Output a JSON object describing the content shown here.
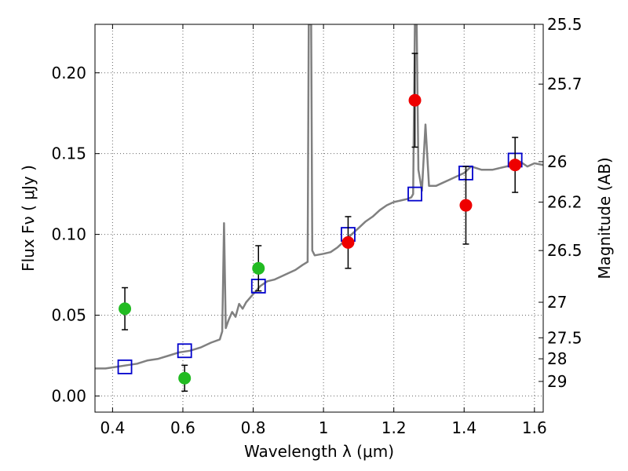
{
  "chart_data": {
    "type": "scatter",
    "xlabel": "Wavelength  λ (μm)",
    "ylabel": "Flux  Fν  ( μJy )",
    "y2label": "Magnitude (AB)",
    "xlim": [
      0.35,
      1.625
    ],
    "ylim": [
      -0.01,
      0.23
    ],
    "grid": true,
    "xticks": [
      0.4,
      0.6,
      0.8,
      1.0,
      1.2,
      1.4,
      1.6
    ],
    "xtick_labels": [
      "0.4",
      "0.6",
      "0.8",
      "1",
      "1.2",
      "1.4",
      "1.6"
    ],
    "yticks": [
      0.0,
      0.05,
      0.1,
      0.15,
      0.2
    ],
    "ytick_labels": [
      "0.00",
      "0.05",
      "0.10",
      "0.15",
      "0.20"
    ],
    "y2ticks": [
      {
        "label": "25.5",
        "flux": 0.23
      },
      {
        "label": "25.7",
        "flux": 0.193
      },
      {
        "label": "26",
        "flux": 0.145
      },
      {
        "label": "26.2",
        "flux": 0.12
      },
      {
        "label": "26.5",
        "flux": 0.09
      },
      {
        "label": "27",
        "flux": 0.058
      },
      {
        "label": "27.5",
        "flux": 0.036
      },
      {
        "label": "28",
        "flux": 0.023
      },
      {
        "label": "29",
        "flux": 0.009
      }
    ],
    "series": [
      {
        "kind": "line",
        "color": "#808080",
        "points": [
          [
            0.35,
            0.017
          ],
          [
            0.38,
            0.017
          ],
          [
            0.41,
            0.018
          ],
          [
            0.44,
            0.019
          ],
          [
            0.47,
            0.02
          ],
          [
            0.5,
            0.022
          ],
          [
            0.53,
            0.023
          ],
          [
            0.56,
            0.025
          ],
          [
            0.59,
            0.027
          ],
          [
            0.62,
            0.028
          ],
          [
            0.65,
            0.03
          ],
          [
            0.68,
            0.033
          ],
          [
            0.705,
            0.035
          ],
          [
            0.712,
            0.04
          ],
          [
            0.717,
            0.107
          ],
          [
            0.722,
            0.042
          ],
          [
            0.73,
            0.047
          ],
          [
            0.74,
            0.052
          ],
          [
            0.75,
            0.049
          ],
          [
            0.76,
            0.057
          ],
          [
            0.77,
            0.054
          ],
          [
            0.78,
            0.058
          ],
          [
            0.8,
            0.063
          ],
          [
            0.82,
            0.068
          ],
          [
            0.84,
            0.071
          ],
          [
            0.86,
            0.072
          ],
          [
            0.88,
            0.074
          ],
          [
            0.9,
            0.076
          ],
          [
            0.92,
            0.078
          ],
          [
            0.94,
            0.081
          ],
          [
            0.955,
            0.083
          ],
          [
            0.958,
            0.23
          ],
          [
            0.965,
            0.23
          ],
          [
            0.968,
            0.09
          ],
          [
            0.975,
            0.087
          ],
          [
            1.0,
            0.088
          ],
          [
            1.02,
            0.089
          ],
          [
            1.04,
            0.092
          ],
          [
            1.06,
            0.096
          ],
          [
            1.08,
            0.1
          ],
          [
            1.1,
            0.104
          ],
          [
            1.12,
            0.108
          ],
          [
            1.14,
            0.111
          ],
          [
            1.16,
            0.115
          ],
          [
            1.18,
            0.118
          ],
          [
            1.2,
            0.12
          ],
          [
            1.22,
            0.121
          ],
          [
            1.24,
            0.122
          ],
          [
            1.25,
            0.123
          ],
          [
            1.255,
            0.125
          ],
          [
            1.26,
            0.23
          ],
          [
            1.265,
            0.23
          ],
          [
            1.27,
            0.14
          ],
          [
            1.28,
            0.127
          ],
          [
            1.29,
            0.168
          ],
          [
            1.3,
            0.13
          ],
          [
            1.32,
            0.13
          ],
          [
            1.34,
            0.132
          ],
          [
            1.36,
            0.134
          ],
          [
            1.38,
            0.136
          ],
          [
            1.4,
            0.138
          ],
          [
            1.42,
            0.142
          ],
          [
            1.45,
            0.14
          ],
          [
            1.48,
            0.14
          ],
          [
            1.5,
            0.141
          ],
          [
            1.52,
            0.142
          ],
          [
            1.54,
            0.143
          ],
          [
            1.56,
            0.145
          ],
          [
            1.58,
            0.142
          ],
          [
            1.6,
            0.144
          ],
          [
            1.625,
            0.143
          ]
        ]
      },
      {
        "kind": "squares",
        "color": "#0000cc",
        "points": [
          [
            0.435,
            0.018
          ],
          [
            0.605,
            0.028
          ],
          [
            0.815,
            0.068
          ],
          [
            1.07,
            0.1
          ],
          [
            1.26,
            0.125
          ],
          [
            1.405,
            0.138
          ],
          [
            1.545,
            0.146
          ]
        ]
      },
      {
        "kind": "circles",
        "color": "#22bb22",
        "points": [
          {
            "x": 0.435,
            "y": 0.054,
            "err": 0.013
          },
          {
            "x": 0.605,
            "y": 0.011,
            "err": 0.008
          },
          {
            "x": 0.815,
            "y": 0.079,
            "err": 0.014
          }
        ]
      },
      {
        "kind": "circles",
        "color": "#ee0000",
        "points": [
          {
            "x": 1.07,
            "y": 0.095,
            "err": 0.016
          },
          {
            "x": 1.26,
            "y": 0.183,
            "err": 0.029
          },
          {
            "x": 1.405,
            "y": 0.118,
            "err": 0.024
          },
          {
            "x": 1.545,
            "y": 0.143,
            "err": 0.017
          }
        ]
      }
    ]
  }
}
